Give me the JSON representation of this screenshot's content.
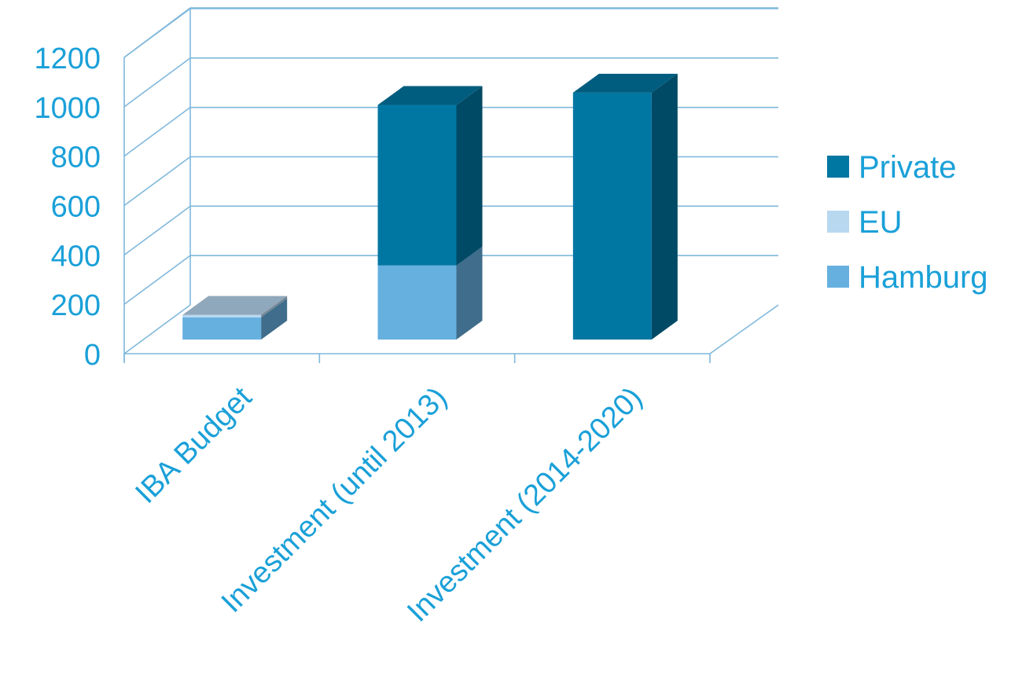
{
  "chart_data": {
    "type": "bar",
    "stacked": true,
    "three_d": true,
    "title": "",
    "xlabel": "",
    "ylabel": "",
    "ylim": [
      0,
      1200
    ],
    "y_ticks": [
      0,
      200,
      400,
      600,
      800,
      1000,
      1200
    ],
    "grid": true,
    "legend_position": "right",
    "categories": [
      "IBA Budget",
      "Investment (until 2013)",
      "Investment (2014-2020)"
    ],
    "series": [
      {
        "name": "Hamburg",
        "color": "#66b0e0",
        "values": [
          90,
          300,
          0
        ]
      },
      {
        "name": "EU",
        "color": "#b8d8f0",
        "values": [
          10,
          0,
          0
        ]
      },
      {
        "name": "Private",
        "color": "#0077a3",
        "values": [
          0,
          650,
          1000
        ]
      }
    ],
    "legend_order": [
      "Private",
      "EU",
      "Hamburg"
    ]
  }
}
